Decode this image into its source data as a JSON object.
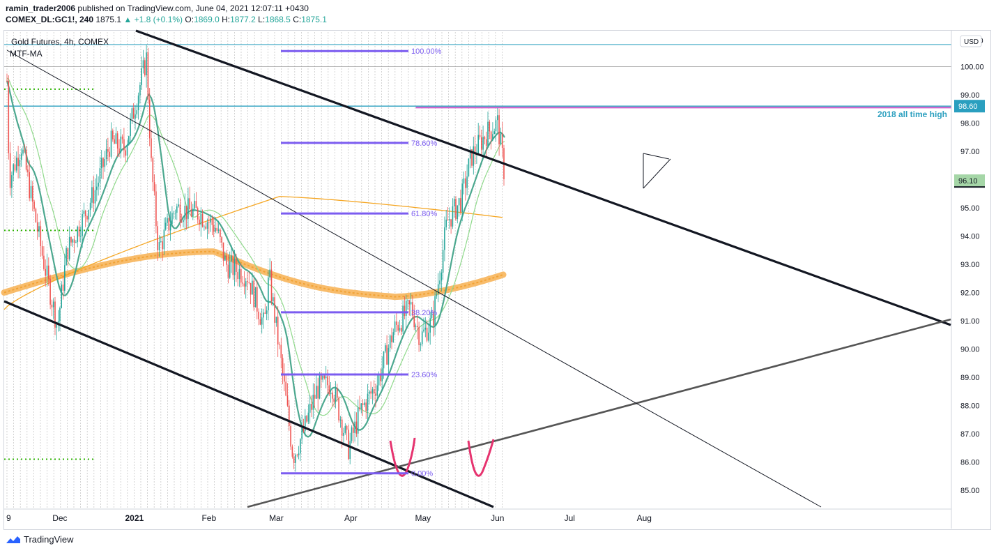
{
  "header": {
    "publisher": "ramin_trader2006",
    "published_on": " published on TradingView.com, June 04, 2021 12:07:11 +0430",
    "symbol": "COMEX_DL:GC1!, 240",
    "last": "1875.1",
    "change": "+1.8 (+0.1%)",
    "o_label": "O:",
    "o": "1869.0",
    "h_label": "H:",
    "h": "1877.2",
    "l_label": "L:",
    "l": "1868.5",
    "c_label": "C:",
    "c": "1875.1"
  },
  "footer": {
    "brand": "TradingView"
  },
  "colors": {
    "bull": "#26a69a",
    "bear": "#ef5350",
    "fib": "#7b5cf0",
    "ma_fast": "#4ca88f",
    "ma_slow": "#8fd98b",
    "ma_orange": "#f5a623",
    "channel": "#131722",
    "support": "#555555",
    "cyan_line": "#2a9fbf",
    "ath_line": "#cc66cc",
    "cup": "#e6336f",
    "dots": "#2db300"
  },
  "chart_data": {
    "type": "candlestick",
    "title": "Gold Futures, 4h, COMEX",
    "indicator_label": "MTF-MA",
    "currency": "USD",
    "ylim": [
      84.5,
      101.5
    ],
    "y_ticks": [
      "85.00",
      "86.00",
      "87.00",
      "88.00",
      "89.00",
      "90.00",
      "91.00",
      "92.00",
      "93.00",
      "94.00",
      "95.00",
      "96.00",
      "97.00",
      "98.00",
      "99.00",
      "100.00"
    ],
    "y_top_label": "101.10",
    "x_ticks": [
      "9",
      "Dec",
      "2021",
      "Feb",
      "Mar",
      "Apr",
      "May",
      "Jun",
      "Jul",
      "Aug"
    ],
    "price_label": "96.10",
    "ath_label": "98.60",
    "ath_annotation": "2018 all time high",
    "fib_levels": [
      {
        "label": "100.00%",
        "price": 100.55
      },
      {
        "label": "78.60%",
        "price": 97.3
      },
      {
        "label": "61.80%",
        "price": 94.8
      },
      {
        "label": "38.20%",
        "price": 91.3
      },
      {
        "label": "23.60%",
        "price": 89.1
      },
      {
        "label": "0.00%",
        "price": 85.6
      }
    ],
    "price_path": [
      [
        "2020-11-09",
        99.5
      ],
      [
        "2020-11-10",
        96.0
      ],
      [
        "2020-11-15",
        97.2
      ],
      [
        "2020-11-24",
        93.2
      ],
      [
        "2020-11-30",
        90.8
      ],
      [
        "2020-12-04",
        93.5
      ],
      [
        "2020-12-10",
        94.5
      ],
      [
        "2020-12-16",
        95.7
      ],
      [
        "2020-12-22",
        97.3
      ],
      [
        "2020-12-28",
        97.1
      ],
      [
        "2021-01-06",
        100.3
      ],
      [
        "2021-01-08",
        96.5
      ],
      [
        "2021-01-11",
        93.5
      ],
      [
        "2021-01-18",
        95.0
      ],
      [
        "2021-01-28",
        94.8
      ],
      [
        "2021-02-04",
        94.3
      ],
      [
        "2021-02-08",
        93.0
      ],
      [
        "2021-02-17",
        92.6
      ],
      [
        "2021-02-24",
        90.8
      ],
      [
        "2021-02-26",
        92.6
      ],
      [
        "2021-03-03",
        89.5
      ],
      [
        "2021-03-08",
        86.2
      ],
      [
        "2021-03-12",
        87.0
      ],
      [
        "2021-03-18",
        88.6
      ],
      [
        "2021-03-24",
        88.8
      ],
      [
        "2021-03-31",
        86.5
      ],
      [
        "2021-04-05",
        87.8
      ],
      [
        "2021-04-12",
        88.8
      ],
      [
        "2021-04-19",
        90.7
      ],
      [
        "2021-04-26",
        91.5
      ],
      [
        "2021-04-30",
        90.4
      ],
      [
        "2021-05-05",
        91.0
      ],
      [
        "2021-05-11",
        94.5
      ],
      [
        "2021-05-17",
        95.3
      ],
      [
        "2021-05-21",
        96.8
      ],
      [
        "2021-05-27",
        97.6
      ],
      [
        "2021-06-01",
        98.0
      ],
      [
        "2021-06-03",
        96.8
      ],
      [
        "2021-06-04",
        96.1
      ]
    ]
  }
}
